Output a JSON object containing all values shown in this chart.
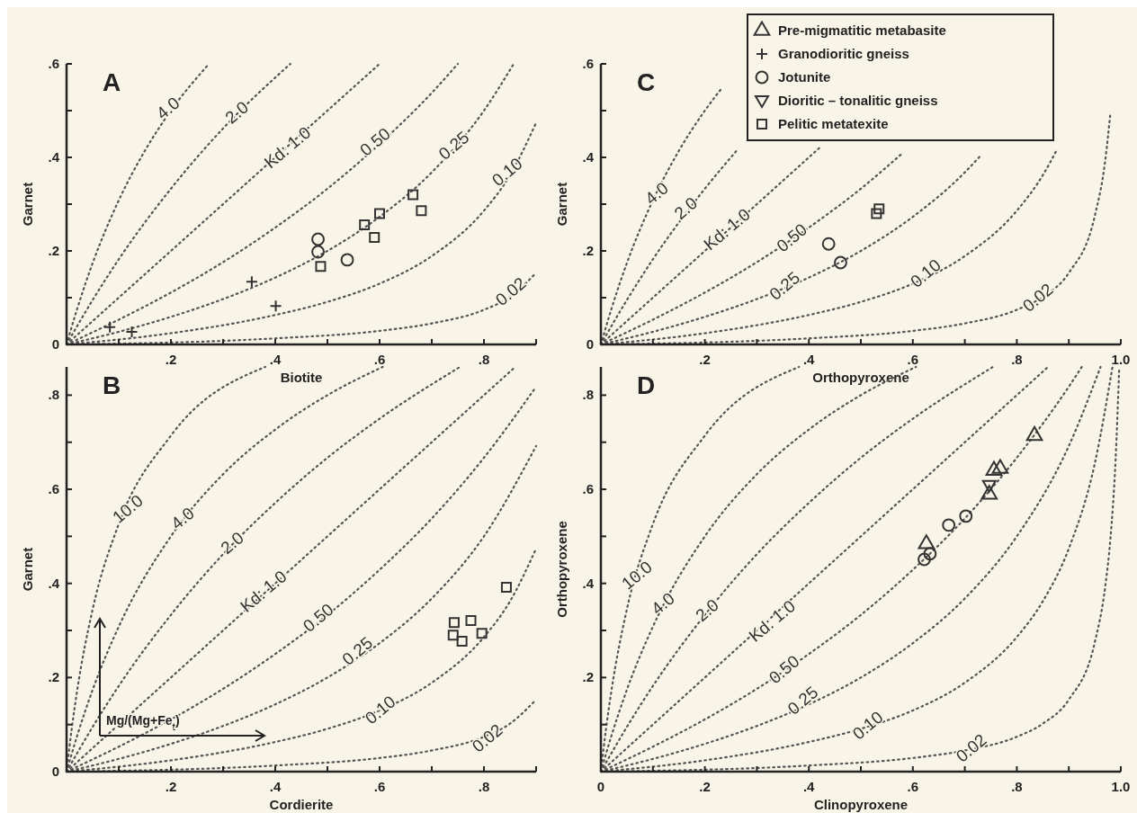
{
  "chart_data": [
    {
      "type": "scatter",
      "title": "A",
      "xlabel": "Biotite",
      "ylabel": "Garnet",
      "xlim": [
        0,
        0.9
      ],
      "ylim": [
        0,
        0.6
      ],
      "xticks": [
        {
          "value": 0.1,
          "label": null
        },
        {
          "value": 0.2,
          "label": ".2"
        },
        {
          "value": 0.3,
          "label": null
        },
        {
          "value": 0.4,
          "label": ".4"
        },
        {
          "value": 0.5,
          "label": null
        },
        {
          "value": 0.6,
          "label": ".6"
        },
        {
          "value": 0.7,
          "label": null
        },
        {
          "value": 0.8,
          "label": ".8"
        },
        {
          "value": 0.9,
          "label": null
        }
      ],
      "yticks": [
        {
          "value": 0,
          "label": "0"
        },
        {
          "value": 0.1,
          "label": null
        },
        {
          "value": 0.2,
          "label": ".2"
        },
        {
          "value": 0.3,
          "label": null
        },
        {
          "value": 0.4,
          "label": ".4"
        },
        {
          "value": 0.5,
          "label": null
        },
        {
          "value": 0.6,
          "label": ".6"
        }
      ],
      "series": [
        {
          "type": "scatter",
          "marker": "cross",
          "color": "#333333",
          "x": [
            0.355,
            0.401,
            0.083,
            0.125
          ],
          "values": [
            0.134,
            0.082,
            0.037,
            0.027
          ]
        },
        {
          "type": "scatter",
          "marker": "circle",
          "color": "#333333",
          "x": [
            0.482,
            0.482,
            0.538
          ],
          "values": [
            0.225,
            0.198,
            0.181
          ]
        },
        {
          "type": "scatter",
          "marker": "square",
          "color": "#333333",
          "x": [
            0.487,
            0.571,
            0.59,
            0.6,
            0.664,
            0.68
          ],
          "values": [
            0.167,
            0.256,
            0.229,
            0.28,
            0.32,
            0.286
          ]
        },
        {
          "type": "line",
          "marker": "none",
          "line_style": "dotted",
          "color": "#555555",
          "x": [
            0,
            0.02,
            0.05,
            0.1,
            0.15,
            0.2,
            0.273
          ],
          "values": [
            0,
            0.075,
            0.174,
            0.308,
            0.414,
            0.5,
            0.6
          ]
        },
        {
          "type": "line",
          "marker": "none",
          "line_style": "dotted",
          "color": "#555555",
          "x": [
            0,
            0.05,
            0.1,
            0.2,
            0.3,
            0.429
          ],
          "values": [
            0,
            0.095,
            0.182,
            0.333,
            0.462,
            0.6
          ]
        },
        {
          "type": "line",
          "marker": "none",
          "line_style": "dotted",
          "color": "#555555",
          "x": [
            0,
            0.3,
            0.6
          ],
          "values": [
            0,
            0.3,
            0.6
          ]
        },
        {
          "type": "line",
          "marker": "none",
          "line_style": "dotted",
          "color": "#555555",
          "x": [
            0,
            0.1,
            0.2,
            0.3,
            0.4,
            0.5,
            0.6,
            0.7,
            0.75
          ],
          "values": [
            0,
            0.053,
            0.111,
            0.176,
            0.25,
            0.333,
            0.429,
            0.538,
            0.6
          ]
        },
        {
          "type": "line",
          "marker": "none",
          "line_style": "dotted",
          "color": "#555555",
          "x": [
            0,
            0.1,
            0.2,
            0.3,
            0.4,
            0.5,
            0.6,
            0.7,
            0.8,
            0.857
          ],
          "values": [
            0,
            0.027,
            0.059,
            0.097,
            0.143,
            0.2,
            0.273,
            0.368,
            0.5,
            0.6
          ]
        },
        {
          "type": "line",
          "marker": "none",
          "line_style": "dotted",
          "color": "#555555",
          "x": [
            0,
            0.2,
            0.4,
            0.5,
            0.6,
            0.7,
            0.8,
            0.85,
            0.9
          ],
          "values": [
            0,
            0.024,
            0.063,
            0.091,
            0.13,
            0.189,
            0.286,
            0.362,
            0.474
          ]
        },
        {
          "type": "line",
          "marker": "none",
          "line_style": "dotted",
          "color": "#555555",
          "x": [
            0,
            0.4,
            0.6,
            0.7,
            0.8,
            0.85,
            0.9
          ],
          "values": [
            0,
            0.013,
            0.029,
            0.045,
            0.074,
            0.102,
            0.153
          ]
        }
      ],
      "annotations": [
        {
          "text": "4.0",
          "x": 0.196,
          "y": 0.503
        },
        {
          "text": "2.0",
          "x": 0.328,
          "y": 0.494
        },
        {
          "text": "Kd: 1.0",
          "x": 0.425,
          "y": 0.419
        },
        {
          "text": "0.50",
          "x": 0.593,
          "y": 0.431
        },
        {
          "text": "0.25",
          "x": 0.744,
          "y": 0.423
        },
        {
          "text": "0.10",
          "x": 0.846,
          "y": 0.367
        },
        {
          "text": "0.02",
          "x": 0.853,
          "y": 0.111
        }
      ]
    },
    {
      "type": "scatter",
      "title": "C",
      "xlabel": "Orthopyroxene",
      "ylabel": "Garnet",
      "xlim": [
        0,
        1
      ],
      "ylim": [
        0,
        0.6
      ],
      "legend": "top right",
      "xticks": [
        {
          "value": 0.1,
          "label": null
        },
        {
          "value": 0.2,
          "label": ".2"
        },
        {
          "value": 0.3,
          "label": null
        },
        {
          "value": 0.4,
          "label": ".4"
        },
        {
          "value": 0.5,
          "label": null
        },
        {
          "value": 0.6,
          "label": ".6"
        },
        {
          "value": 0.7,
          "label": null
        },
        {
          "value": 0.8,
          "label": ".8"
        },
        {
          "value": 0.9,
          "label": null
        },
        {
          "value": 1,
          "label": "1.0"
        }
      ],
      "yticks": [
        {
          "value": 0,
          "label": "0"
        },
        {
          "value": 0.1,
          "label": null
        },
        {
          "value": 0.2,
          "label": ".2"
        },
        {
          "value": 0.3,
          "label": null
        },
        {
          "value": 0.4,
          "label": ".4"
        },
        {
          "value": 0.5,
          "label": null
        },
        {
          "value": 0.6,
          "label": ".6"
        }
      ],
      "series": [
        {
          "type": "scatter",
          "name": "Pre-migmatitic metabasite",
          "marker": "triangle",
          "color": "#333333"
        },
        {
          "type": "scatter",
          "name": "Granodioritic gneiss",
          "marker": "cross",
          "color": "#333333"
        },
        {
          "type": "scatter",
          "name": "Jotunite",
          "marker": "circle",
          "color": "#333333",
          "x": [
            0.438,
            0.461
          ],
          "values": [
            0.215,
            0.175
          ]
        },
        {
          "type": "scatter",
          "name": "Dioritic – tonalitic gneiss",
          "marker": "triangle-down",
          "color": "#333333"
        },
        {
          "type": "scatter",
          "name": "Pelitic metatexite",
          "marker": "square",
          "color": "#333333",
          "x": [
            0.53,
            0.535
          ],
          "values": [
            0.28,
            0.29
          ]
        },
        {
          "type": "line",
          "marker": "none",
          "line_style": "dotted",
          "color": "#555555",
          "x": [
            0,
            0.02,
            0.05,
            0.1,
            0.15,
            0.2,
            0.234
          ],
          "values": [
            0,
            0.075,
            0.174,
            0.308,
            0.414,
            0.5,
            0.55
          ]
        },
        {
          "type": "line",
          "marker": "none",
          "line_style": "dotted",
          "color": "#555555",
          "x": [
            0,
            0.05,
            0.1,
            0.2,
            0.26
          ],
          "values": [
            0,
            0.095,
            0.182,
            0.333,
            0.413
          ]
        },
        {
          "type": "line",
          "marker": "none",
          "line_style": "dotted",
          "color": "#555555",
          "x": [
            0,
            0.42
          ],
          "values": [
            0,
            0.42
          ]
        },
        {
          "type": "line",
          "marker": "none",
          "line_style": "dotted",
          "color": "#555555",
          "x": [
            0,
            0.1,
            0.2,
            0.3,
            0.4,
            0.5,
            0.58
          ],
          "values": [
            0,
            0.053,
            0.111,
            0.176,
            0.25,
            0.333,
            0.409
          ]
        },
        {
          "type": "line",
          "marker": "none",
          "line_style": "dotted",
          "color": "#555555",
          "x": [
            0,
            0.1,
            0.2,
            0.3,
            0.4,
            0.5,
            0.6,
            0.7,
            0.733
          ],
          "values": [
            0,
            0.027,
            0.059,
            0.097,
            0.143,
            0.2,
            0.273,
            0.368,
            0.407
          ]
        },
        {
          "type": "line",
          "marker": "none",
          "line_style": "dotted",
          "color": "#555555",
          "x": [
            0,
            0.2,
            0.4,
            0.5,
            0.6,
            0.7,
            0.8,
            0.85,
            0.877
          ],
          "values": [
            0,
            0.024,
            0.063,
            0.091,
            0.13,
            0.189,
            0.286,
            0.362,
            0.416
          ]
        },
        {
          "type": "line",
          "marker": "none",
          "line_style": "dotted",
          "color": "#555555",
          "x": [
            0,
            0.4,
            0.6,
            0.7,
            0.8,
            0.85,
            0.9,
            0.95,
            0.97,
            0.98
          ],
          "values": [
            0,
            0.013,
            0.029,
            0.045,
            0.074,
            0.102,
            0.153,
            0.275,
            0.393,
            0.495
          ]
        }
      ],
      "annotations": [
        {
          "text": "4.0",
          "x": 0.109,
          "y": 0.321
        },
        {
          "text": "2.0",
          "x": 0.165,
          "y": 0.289
        },
        {
          "text": "Kd: 1.0",
          "x": 0.244,
          "y": 0.244
        },
        {
          "text": "0.50",
          "x": 0.369,
          "y": 0.226
        },
        {
          "text": "0.25",
          "x": 0.355,
          "y": 0.123
        },
        {
          "text": "0.10",
          "x": 0.626,
          "y": 0.15
        },
        {
          "text": "0.02",
          "x": 0.842,
          "y": 0.098
        }
      ]
    },
    {
      "type": "scatter",
      "title": "B",
      "xlabel": "Cordierite",
      "ylabel": "Garnet",
      "xlim": [
        0,
        0.9
      ],
      "ylim": [
        0,
        0.86
      ],
      "xticks": [
        {
          "value": 0.1,
          "label": null
        },
        {
          "value": 0.2,
          "label": ".2"
        },
        {
          "value": 0.3,
          "label": null
        },
        {
          "value": 0.4,
          "label": ".4"
        },
        {
          "value": 0.5,
          "label": null
        },
        {
          "value": 0.6,
          "label": ".6"
        },
        {
          "value": 0.7,
          "label": null
        },
        {
          "value": 0.8,
          "label": ".8"
        },
        {
          "value": 0.9,
          "label": null
        }
      ],
      "yticks": [
        {
          "value": 0,
          "label": "0"
        },
        {
          "value": 0.1,
          "label": null
        },
        {
          "value": 0.2,
          "label": ".2"
        },
        {
          "value": 0.3,
          "label": null
        },
        {
          "value": 0.4,
          "label": ".4"
        },
        {
          "value": 0.5,
          "label": null
        },
        {
          "value": 0.6,
          "label": ".6"
        },
        {
          "value": 0.7,
          "label": null
        },
        {
          "value": 0.8,
          "label": ".8"
        }
      ],
      "series": [
        {
          "type": "scatter",
          "marker": "square",
          "color": "#333333",
          "x": [
            0.743,
            0.741,
            0.758,
            0.775,
            0.796,
            0.843
          ],
          "values": [
            0.317,
            0.29,
            0.277,
            0.321,
            0.294,
            0.392
          ]
        },
        {
          "type": "line",
          "marker": "none",
          "line_style": "dotted",
          "color": "#555555",
          "x": [
            0,
            0.01,
            0.02,
            0.05,
            0.1,
            0.2,
            0.381
          ],
          "values": [
            0,
            0.092,
            0.17,
            0.345,
            0.526,
            0.714,
            0.86
          ]
        },
        {
          "type": "line",
          "marker": "none",
          "line_style": "dotted",
          "color": "#555555",
          "x": [
            0,
            0.02,
            0.05,
            0.1,
            0.2,
            0.3,
            0.4,
            0.5,
            0.606
          ],
          "values": [
            0,
            0.075,
            0.174,
            0.308,
            0.5,
            0.632,
            0.727,
            0.8,
            0.86
          ]
        },
        {
          "type": "line",
          "marker": "none",
          "line_style": "dotted",
          "color": "#555555",
          "x": [
            0,
            0.05,
            0.1,
            0.2,
            0.3,
            0.4,
            0.5,
            0.6,
            0.754
          ],
          "values": [
            0,
            0.095,
            0.182,
            0.333,
            0.462,
            0.571,
            0.667,
            0.75,
            0.86
          ]
        },
        {
          "type": "line",
          "marker": "none",
          "line_style": "dotted",
          "color": "#555555",
          "x": [
            0,
            0.43,
            0.86
          ],
          "values": [
            0,
            0.43,
            0.86
          ]
        },
        {
          "type": "line",
          "marker": "none",
          "line_style": "dotted",
          "color": "#555555",
          "x": [
            0,
            0.1,
            0.2,
            0.3,
            0.4,
            0.5,
            0.6,
            0.7,
            0.8,
            0.9
          ],
          "values": [
            0,
            0.053,
            0.111,
            0.176,
            0.25,
            0.333,
            0.429,
            0.538,
            0.667,
            0.818
          ]
        },
        {
          "type": "line",
          "marker": "none",
          "line_style": "dotted",
          "color": "#555555",
          "x": [
            0,
            0.1,
            0.2,
            0.3,
            0.4,
            0.5,
            0.6,
            0.7,
            0.8,
            0.9
          ],
          "values": [
            0,
            0.027,
            0.059,
            0.097,
            0.143,
            0.2,
            0.273,
            0.368,
            0.5,
            0.692
          ]
        },
        {
          "type": "line",
          "marker": "none",
          "line_style": "dotted",
          "color": "#555555",
          "x": [
            0,
            0.2,
            0.4,
            0.5,
            0.6,
            0.7,
            0.8,
            0.85,
            0.9
          ],
          "values": [
            0,
            0.024,
            0.063,
            0.091,
            0.13,
            0.189,
            0.286,
            0.362,
            0.474
          ]
        },
        {
          "type": "line",
          "marker": "none",
          "line_style": "dotted",
          "color": "#555555",
          "x": [
            0,
            0.4,
            0.6,
            0.7,
            0.8,
            0.85,
            0.9
          ],
          "values": [
            0,
            0.013,
            0.029,
            0.045,
            0.074,
            0.102,
            0.153
          ]
        }
      ],
      "annotations": [
        {
          "text": "10.0",
          "x": 0.119,
          "y": 0.556
        },
        {
          "text": "4.0",
          "x": 0.224,
          "y": 0.536
        },
        {
          "text": "2.0",
          "x": 0.319,
          "y": 0.484
        },
        {
          "text": "Kd: 1.0",
          "x": 0.379,
          "y": 0.381
        },
        {
          "text": "0.50",
          "x": 0.484,
          "y": 0.325
        },
        {
          "text": "0.25",
          "x": 0.559,
          "y": 0.254
        },
        {
          "text": "0.10",
          "x": 0.603,
          "y": 0.129
        },
        {
          "text": "0.02",
          "x": 0.808,
          "y": 0.069
        },
        "Mg/(Mg+Fe$_{t}$)"
      ]
    },
    {
      "type": "scatter",
      "title": "D",
      "xlabel": "Clinopyroxene",
      "ylabel": "Orthopyroxene",
      "xlim": [
        0,
        1
      ],
      "ylim": [
        0,
        0.86
      ],
      "xticks": [
        {
          "value": 0,
          "label": "0"
        },
        {
          "value": 0.1,
          "label": null
        },
        {
          "value": 0.2,
          "label": ".2"
        },
        {
          "value": 0.3,
          "label": null
        },
        {
          "value": 0.4,
          "label": ".4"
        },
        {
          "value": 0.5,
          "label": null
        },
        {
          "value": 0.6,
          "label": ".6"
        },
        {
          "value": 0.7,
          "label": null
        },
        {
          "value": 0.8,
          "label": ".8"
        },
        {
          "value": 0.9,
          "label": null
        },
        {
          "value": 1,
          "label": "1.0"
        }
      ],
      "yticks": [
        {
          "value": 0.1,
          "label": null
        },
        {
          "value": 0.2,
          "label": ".2"
        },
        {
          "value": 0.3,
          "label": null
        },
        {
          "value": 0.4,
          "label": ".4"
        },
        {
          "value": 0.5,
          "label": null
        },
        {
          "value": 0.6,
          "label": ".6"
        },
        {
          "value": 0.7,
          "label": null
        },
        {
          "value": 0.8,
          "label": ".8"
        }
      ],
      "series": [
        {
          "type": "scatter",
          "marker": "triangle",
          "color": "#333333",
          "x": [
            0.834,
            0.768,
            0.756,
            0.747,
            0.626
          ],
          "values": [
            0.714,
            0.644,
            0.64,
            0.589,
            0.484
          ]
        },
        {
          "type": "scatter",
          "marker": "triangle-down",
          "color": "#333333",
          "x": [
            0.747
          ],
          "values": [
            0.608
          ]
        },
        {
          "type": "scatter",
          "marker": "circle",
          "color": "#333333",
          "x": [
            0.622,
            0.633,
            0.669,
            0.702
          ],
          "values": [
            0.451,
            0.463,
            0.524,
            0.543
          ]
        },
        {
          "type": "line",
          "marker": "none",
          "line_style": "dotted",
          "color": "#555555",
          "x": [
            0,
            0.01,
            0.02,
            0.05,
            0.1,
            0.2,
            0.381
          ],
          "values": [
            0,
            0.092,
            0.17,
            0.345,
            0.526,
            0.714,
            0.86
          ]
        },
        {
          "type": "line",
          "marker": "none",
          "line_style": "dotted",
          "color": "#555555",
          "x": [
            0,
            0.02,
            0.05,
            0.1,
            0.2,
            0.3,
            0.4,
            0.5,
            0.606
          ],
          "values": [
            0,
            0.075,
            0.174,
            0.308,
            0.5,
            0.632,
            0.727,
            0.8,
            0.86
          ]
        },
        {
          "type": "line",
          "marker": "none",
          "line_style": "dotted",
          "color": "#555555",
          "x": [
            0,
            0.05,
            0.1,
            0.2,
            0.3,
            0.4,
            0.5,
            0.6,
            0.754
          ],
          "values": [
            0,
            0.095,
            0.182,
            0.333,
            0.462,
            0.571,
            0.667,
            0.75,
            0.86
          ]
        },
        {
          "type": "line",
          "marker": "none",
          "line_style": "dotted",
          "color": "#555555",
          "x": [
            0,
            0.43,
            0.86
          ],
          "values": [
            0,
            0.43,
            0.86
          ]
        },
        {
          "type": "line",
          "marker": "none",
          "line_style": "dotted",
          "color": "#555555",
          "x": [
            0,
            0.1,
            0.2,
            0.3,
            0.4,
            0.5,
            0.6,
            0.7,
            0.8,
            0.9,
            0.925
          ],
          "values": [
            0,
            0.053,
            0.111,
            0.176,
            0.25,
            0.333,
            0.429,
            0.538,
            0.667,
            0.818,
            0.86
          ]
        },
        {
          "type": "line",
          "marker": "none",
          "line_style": "dotted",
          "color": "#555555",
          "x": [
            0,
            0.1,
            0.2,
            0.3,
            0.4,
            0.5,
            0.6,
            0.7,
            0.8,
            0.9,
            0.961
          ],
          "values": [
            0,
            0.027,
            0.059,
            0.097,
            0.143,
            0.2,
            0.273,
            0.368,
            0.5,
            0.692,
            0.86
          ]
        },
        {
          "type": "line",
          "marker": "none",
          "line_style": "dotted",
          "color": "#555555",
          "x": [
            0,
            0.2,
            0.4,
            0.5,
            0.6,
            0.7,
            0.8,
            0.85,
            0.9,
            0.95,
            0.984
          ],
          "values": [
            0,
            0.024,
            0.063,
            0.091,
            0.13,
            0.189,
            0.286,
            0.362,
            0.474,
            0.655,
            0.86
          ]
        },
        {
          "type": "line",
          "marker": "none",
          "line_style": "dotted",
          "color": "#555555",
          "x": [
            0,
            0.4,
            0.6,
            0.7,
            0.8,
            0.85,
            0.9,
            0.95,
            0.97,
            0.98,
            0.99,
            0.997
          ],
          "values": [
            0,
            0.013,
            0.029,
            0.045,
            0.074,
            0.102,
            0.153,
            0.275,
            0.393,
            0.495,
            0.664,
            0.86
          ]
        }
      ],
      "annotations": [
        {
          "text": "10.0",
          "x": 0.071,
          "y": 0.415
        },
        {
          "text": "4.0",
          "x": 0.121,
          "y": 0.355
        },
        {
          "text": "2.0",
          "x": 0.206,
          "y": 0.341
        },
        {
          "text": "Kd: 1.0",
          "x": 0.331,
          "y": 0.318
        },
        {
          "text": "0.50",
          "x": 0.354,
          "y": 0.215
        },
        {
          "text": "0.25",
          "x": 0.39,
          "y": 0.149
        },
        {
          "text": "0.10",
          "x": 0.515,
          "y": 0.096
        },
        {
          "text": "0.02",
          "x": 0.714,
          "y": 0.048
        }
      ]
    }
  ]
}
